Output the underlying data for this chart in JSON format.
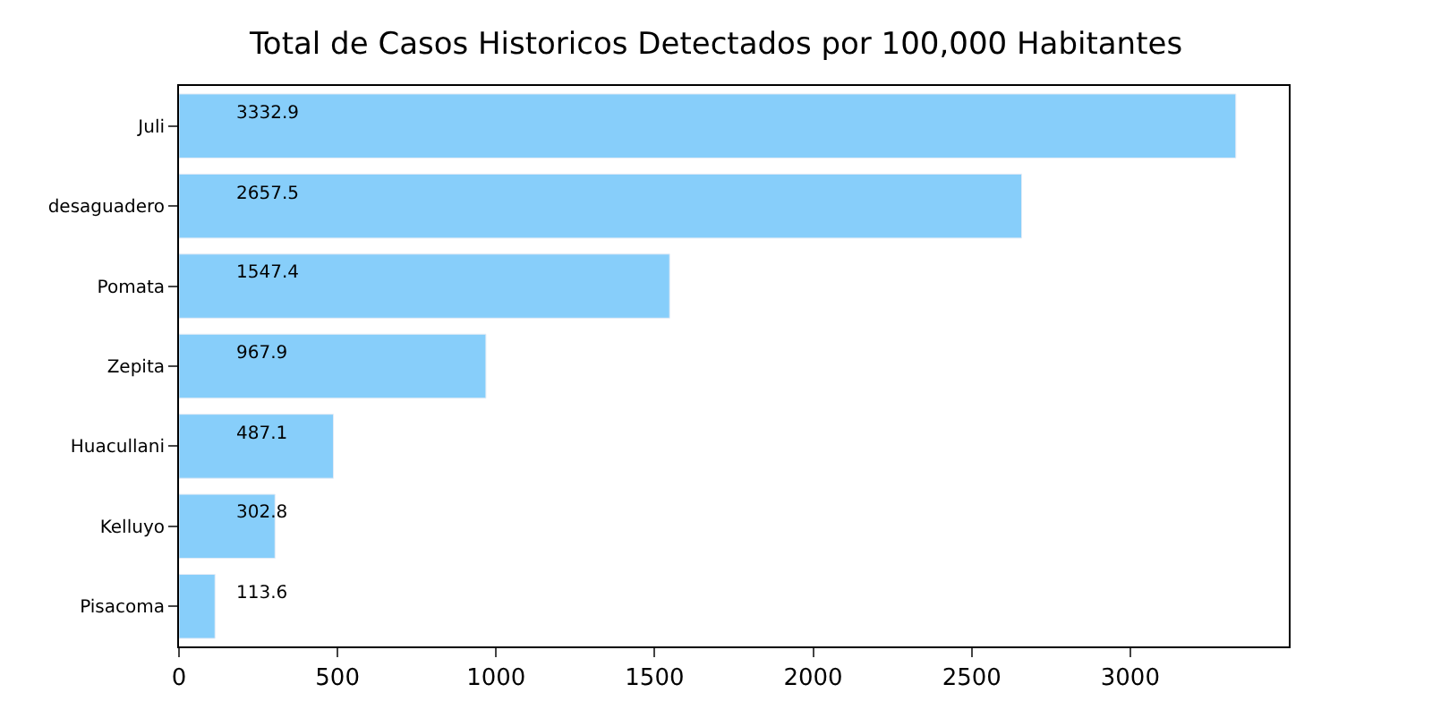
{
  "chart_data": {
    "type": "bar",
    "orientation": "horizontal",
    "title": "Total de Casos Historicos Detectados por 100,000 Habitantes",
    "categories": [
      "Juli",
      "desaguadero",
      "Pomata",
      "Zepita",
      "Huacullani",
      "Kelluyo",
      "Pisacoma"
    ],
    "values": [
      3332.9,
      2657.5,
      1547.4,
      967.9,
      487.1,
      302.8,
      113.6
    ],
    "color": "#87cefa",
    "xlim": [
      0,
      3500
    ],
    "xticks": [
      0,
      500,
      1000,
      1500,
      2000,
      2500,
      3000
    ],
    "data_labels": true
  }
}
